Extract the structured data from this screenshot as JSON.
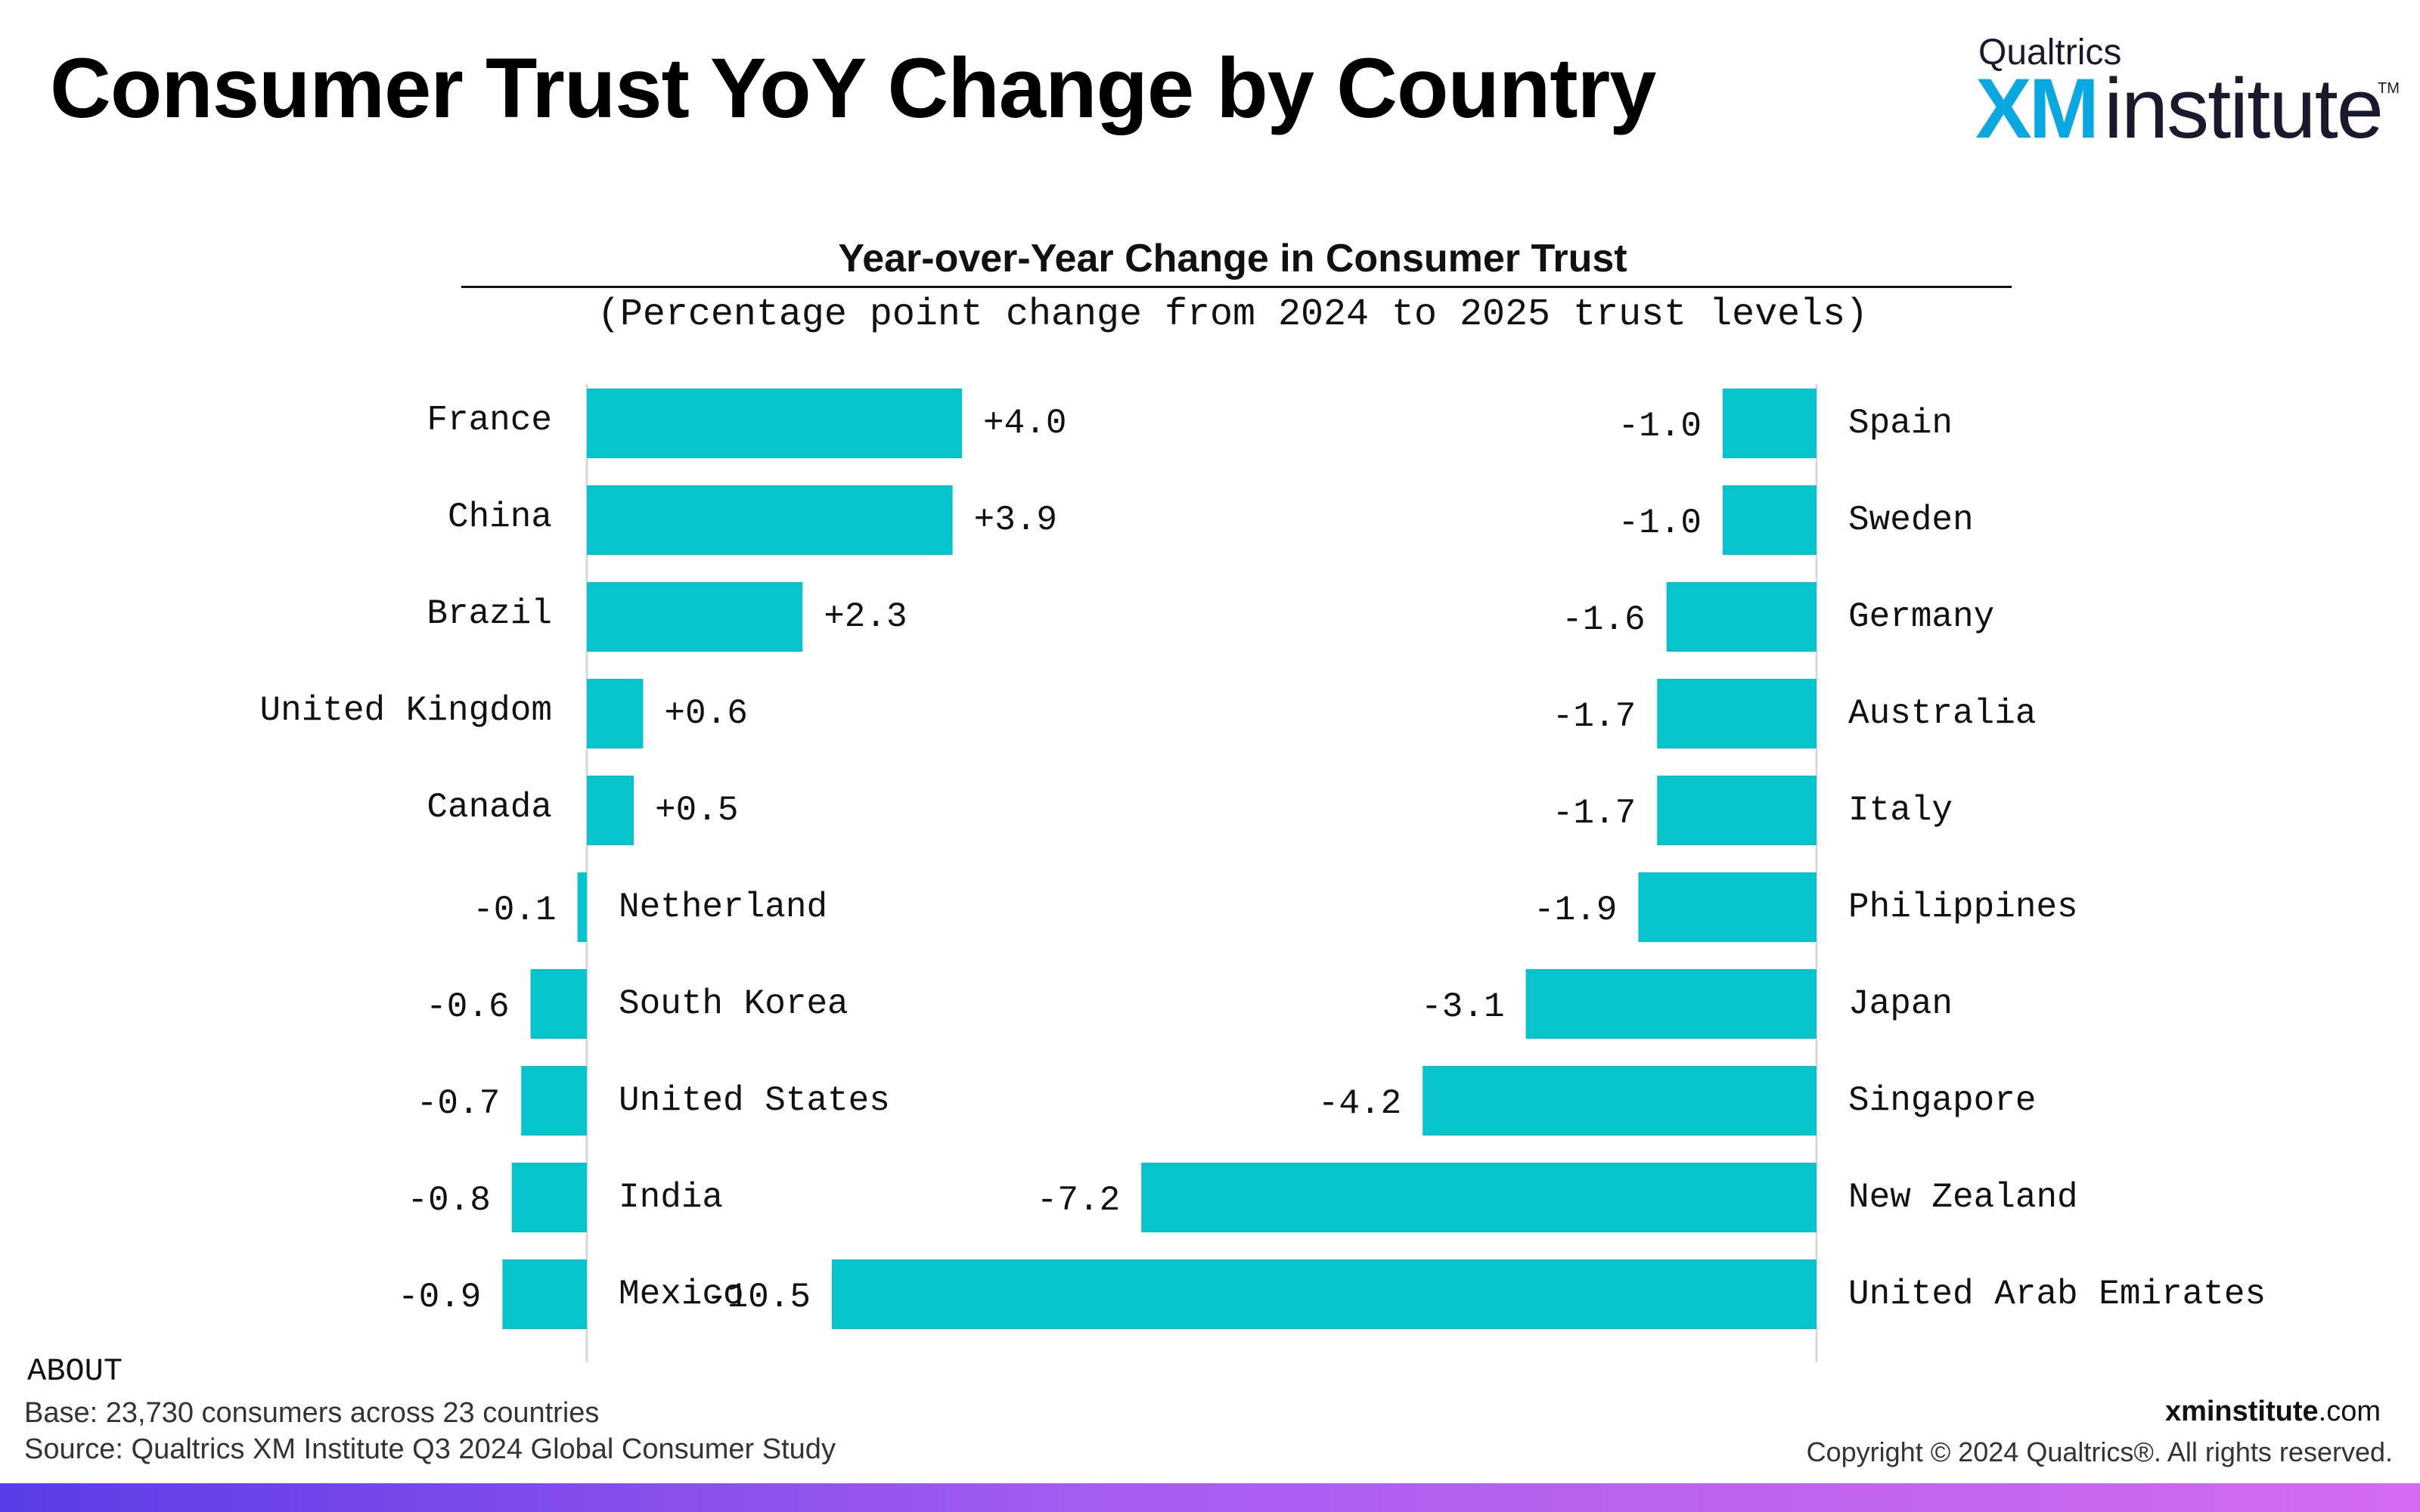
{
  "header": {
    "title": "Consumer Trust YoY Change by Country",
    "logo": {
      "top": "Qualtrics",
      "xm": "XM",
      "rest": "institute",
      "tm": "TM"
    }
  },
  "chart_data": {
    "type": "bar",
    "orientation": "horizontal",
    "title": "Year-over-Year Change in Consumer Trust",
    "subtitle": "(Percentage point change from 2024 to 2025 trust levels)",
    "bar_color": "#07c3cc",
    "panels": [
      {
        "categories": [
          "France",
          "China",
          "Brazil",
          "United Kingdom",
          "Canada",
          "Netherland",
          "South Korea",
          "United States",
          "India",
          "Mexico"
        ],
        "values": [
          4.0,
          3.9,
          2.3,
          0.6,
          0.5,
          -0.1,
          -0.6,
          -0.7,
          -0.8,
          -0.9
        ],
        "labels": [
          "+4.0",
          "+3.9",
          "+2.3",
          "+0.6",
          "+0.5",
          "-0.1",
          "-0.6",
          "-0.7",
          "-0.8",
          "-0.9"
        ]
      },
      {
        "categories": [
          "Spain",
          "Sweden",
          "Germany",
          "Australia",
          "Italy",
          "Philippines",
          "Japan",
          "Singapore",
          "New Zealand",
          "United Arab Emirates"
        ],
        "values": [
          -1.0,
          -1.0,
          -1.6,
          -1.7,
          -1.7,
          -1.9,
          -3.1,
          -4.2,
          -7.2,
          -10.5
        ],
        "labels": [
          "-1.0",
          "-1.0",
          "-1.6",
          "-1.7",
          "-1.7",
          "-1.9",
          "-3.1",
          "-4.2",
          "-7.2",
          "-10.5"
        ]
      }
    ]
  },
  "footer": {
    "about": "ABOUT",
    "base": "Base: 23,730 consumers across 23 countries",
    "source": "Source: Qualtrics XM Institute Q3 2024 Global Consumer Study",
    "site_bold": "xminstitute",
    "site_rest": ".com",
    "copyright": "Copyright © 2024 Qualtrics®. All rights reserved."
  }
}
